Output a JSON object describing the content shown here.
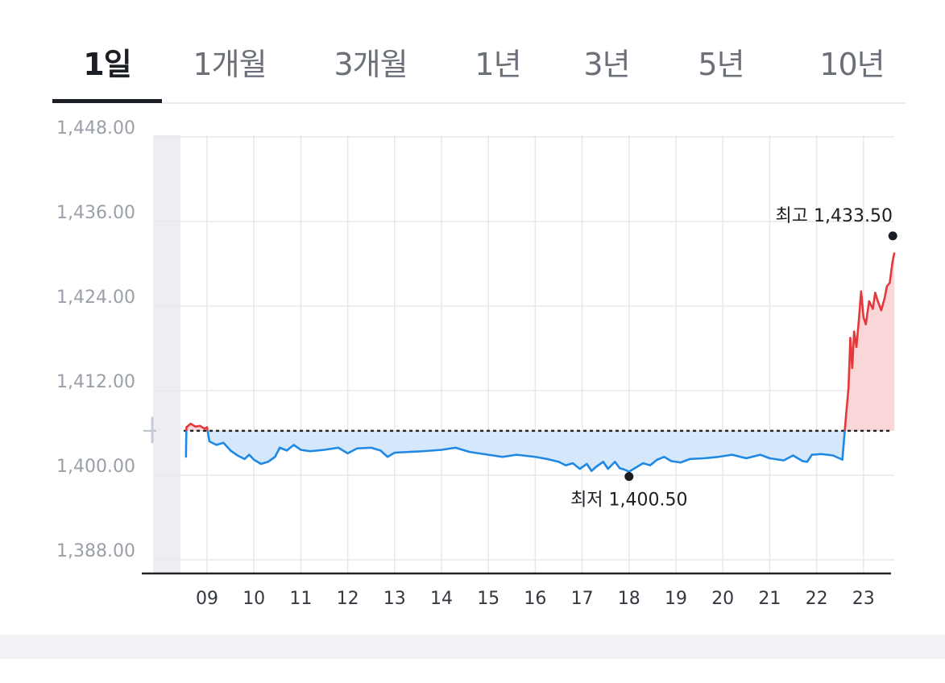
{
  "tabs": [
    {
      "label": "1일",
      "active": true
    },
    {
      "label": "1개월",
      "active": false
    },
    {
      "label": "3개월",
      "active": false
    },
    {
      "label": "1년",
      "active": false
    },
    {
      "label": "3년",
      "active": false
    },
    {
      "label": "5년",
      "active": false
    },
    {
      "label": "10년",
      "active": false
    }
  ],
  "chart_data": {
    "type": "line",
    "reference_value": 1406.3,
    "ylim": [
      1388.0,
      1448.0
    ],
    "xlim": [
      8.3,
      23.7
    ],
    "y_ticks": [
      {
        "value": 1448.0,
        "label": "1,448.00"
      },
      {
        "value": 1436.0,
        "label": "1,436.00"
      },
      {
        "value": 1424.0,
        "label": "1,424.00"
      },
      {
        "value": 1412.0,
        "label": "1,412.00"
      },
      {
        "value": 1400.0,
        "label": "1,400.00"
      },
      {
        "value": 1388.0,
        "label": "1,388.00"
      }
    ],
    "x_ticks": [
      {
        "value": 9,
        "label": "09"
      },
      {
        "value": 10,
        "label": "10"
      },
      {
        "value": 11,
        "label": "11"
      },
      {
        "value": 12,
        "label": "12"
      },
      {
        "value": 13,
        "label": "13"
      },
      {
        "value": 14,
        "label": "14"
      },
      {
        "value": 15,
        "label": "15"
      },
      {
        "value": 16,
        "label": "16"
      },
      {
        "value": 17,
        "label": "17"
      },
      {
        "value": 18,
        "label": "18"
      },
      {
        "value": 19,
        "label": "19"
      },
      {
        "value": 20,
        "label": "20"
      },
      {
        "value": 21,
        "label": "21"
      },
      {
        "value": 22,
        "label": "22"
      },
      {
        "value": 23,
        "label": "23"
      }
    ],
    "series": [
      {
        "points": [
          [
            8.55,
            1402.5
          ],
          [
            8.56,
            1406.8
          ],
          [
            8.65,
            1407.3
          ],
          [
            8.75,
            1406.9
          ],
          [
            8.85,
            1407.0
          ],
          [
            8.95,
            1406.6
          ],
          [
            9.0,
            1406.8
          ],
          [
            9.05,
            1404.8
          ],
          [
            9.2,
            1404.3
          ],
          [
            9.35,
            1404.6
          ],
          [
            9.5,
            1403.5
          ],
          [
            9.65,
            1402.8
          ],
          [
            9.8,
            1402.3
          ],
          [
            9.9,
            1402.9
          ],
          [
            10.0,
            1402.2
          ],
          [
            10.15,
            1401.6
          ],
          [
            10.3,
            1401.9
          ],
          [
            10.45,
            1402.6
          ],
          [
            10.55,
            1403.9
          ],
          [
            10.7,
            1403.5
          ],
          [
            10.85,
            1404.3
          ],
          [
            11.0,
            1403.6
          ],
          [
            11.2,
            1403.4
          ],
          [
            11.5,
            1403.6
          ],
          [
            11.8,
            1403.9
          ],
          [
            12.0,
            1403.1
          ],
          [
            12.2,
            1403.8
          ],
          [
            12.5,
            1403.9
          ],
          [
            12.7,
            1403.5
          ],
          [
            12.85,
            1402.6
          ],
          [
            13.0,
            1403.2
          ],
          [
            13.3,
            1403.3
          ],
          [
            13.6,
            1403.4
          ],
          [
            14.0,
            1403.6
          ],
          [
            14.3,
            1403.9
          ],
          [
            14.6,
            1403.3
          ],
          [
            15.0,
            1402.9
          ],
          [
            15.3,
            1402.6
          ],
          [
            15.6,
            1402.9
          ],
          [
            16.0,
            1402.6
          ],
          [
            16.25,
            1402.3
          ],
          [
            16.5,
            1401.9
          ],
          [
            16.65,
            1401.4
          ],
          [
            16.8,
            1401.7
          ],
          [
            16.95,
            1400.9
          ],
          [
            17.1,
            1401.6
          ],
          [
            17.2,
            1400.6
          ],
          [
            17.3,
            1401.2
          ],
          [
            17.45,
            1401.9
          ],
          [
            17.55,
            1400.9
          ],
          [
            17.7,
            1401.9
          ],
          [
            17.8,
            1401.0
          ],
          [
            17.9,
            1400.8
          ],
          [
            18.0,
            1400.5
          ],
          [
            18.15,
            1401.1
          ],
          [
            18.3,
            1401.7
          ],
          [
            18.45,
            1401.4
          ],
          [
            18.6,
            1402.2
          ],
          [
            18.75,
            1402.6
          ],
          [
            18.9,
            1402.0
          ],
          [
            19.1,
            1401.8
          ],
          [
            19.3,
            1402.3
          ],
          [
            19.6,
            1402.4
          ],
          [
            19.9,
            1402.6
          ],
          [
            20.2,
            1402.9
          ],
          [
            20.5,
            1402.4
          ],
          [
            20.8,
            1402.9
          ],
          [
            21.0,
            1402.4
          ],
          [
            21.3,
            1402.1
          ],
          [
            21.5,
            1402.8
          ],
          [
            21.7,
            1402.0
          ],
          [
            21.8,
            1401.9
          ],
          [
            21.9,
            1402.9
          ],
          [
            22.1,
            1403.0
          ],
          [
            22.35,
            1402.8
          ],
          [
            22.55,
            1402.2
          ],
          [
            22.63,
            1408.6
          ],
          [
            22.68,
            1412.3
          ],
          [
            22.72,
            1419.5
          ],
          [
            22.76,
            1415.2
          ],
          [
            22.8,
            1420.4
          ],
          [
            22.85,
            1418.2
          ],
          [
            22.9,
            1421.9
          ],
          [
            22.95,
            1426.1
          ],
          [
            23.0,
            1422.4
          ],
          [
            23.05,
            1421.4
          ],
          [
            23.12,
            1424.7
          ],
          [
            23.2,
            1423.6
          ],
          [
            23.25,
            1425.9
          ],
          [
            23.3,
            1424.8
          ],
          [
            23.38,
            1423.4
          ],
          [
            23.45,
            1425.1
          ],
          [
            23.5,
            1426.8
          ],
          [
            23.56,
            1427.3
          ],
          [
            23.62,
            1430.3
          ],
          [
            23.66,
            1431.6
          ]
        ]
      }
    ],
    "annotations": [
      {
        "label": "최고 1,433.50",
        "x": 23.66,
        "y": 1433.5
      },
      {
        "label": "최저 1,400.50",
        "x": 18.0,
        "y": 1400.5
      }
    ],
    "colors": {
      "up": "#e5383b",
      "down": "#1e88e5",
      "up_fill": "#f9d6d7",
      "down_fill": "#d5e7fa",
      "grid": "#e6e8ec",
      "axis_text": "#9aa0a8",
      "axis": "#222222",
      "premarket_band": "#eceef4",
      "reference_line": "#222222"
    }
  }
}
